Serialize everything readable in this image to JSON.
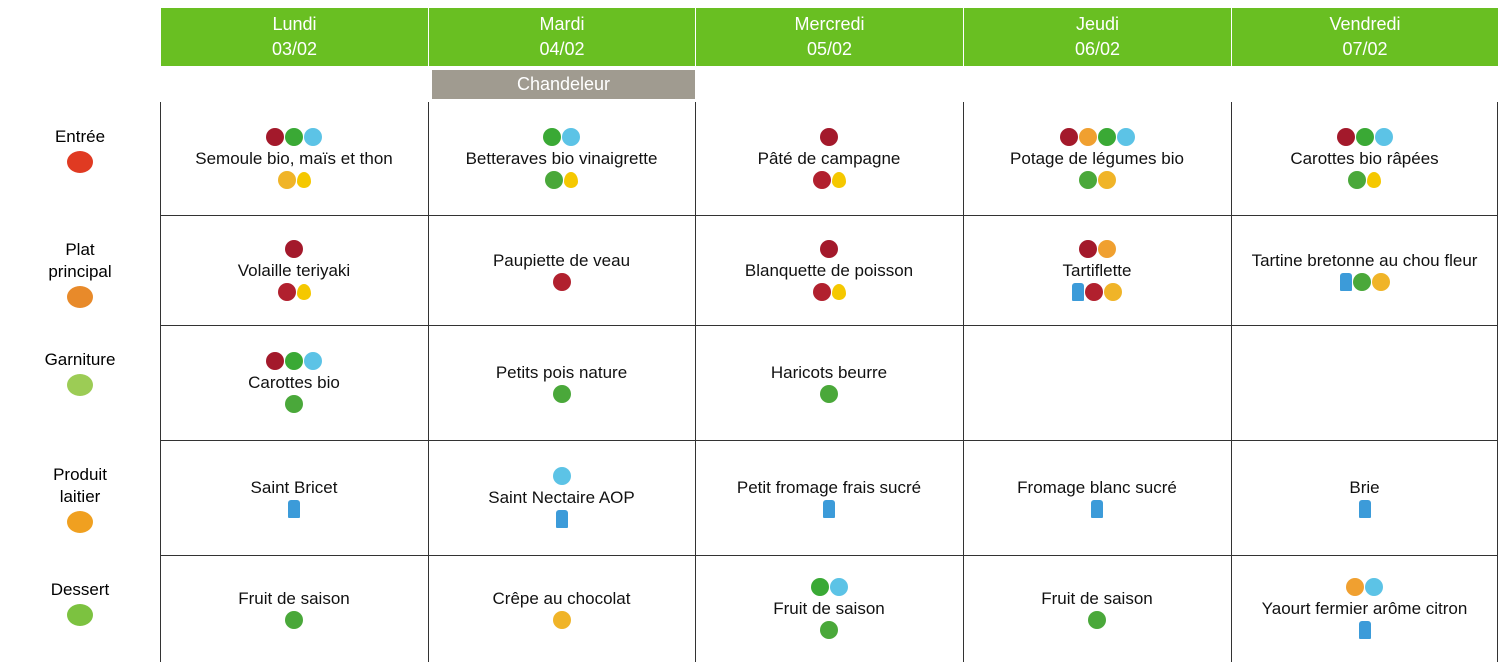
{
  "days": [
    {
      "name": "Lundi",
      "date": "03/02"
    },
    {
      "name": "Mardi",
      "date": "04/02"
    },
    {
      "name": "Mercredi",
      "date": "05/02"
    },
    {
      "name": "Jeudi",
      "date": "06/02"
    },
    {
      "name": "Vendredi",
      "date": "07/02"
    }
  ],
  "event": "Chandeleur",
  "rows": [
    {
      "label": "Entrée",
      "dishes": [
        "Semoule bio, maïs et thon",
        "Betteraves bio vinaigrette",
        "Pâté de campagne",
        "Potage de légumes bio",
        "Carottes bio râpées"
      ]
    },
    {
      "label": "Plat principal",
      "dishes": [
        "Volaille teriyaki",
        "Paupiette de veau",
        "Blanquette de poisson",
        "Tartiflette",
        "Tartine bretonne au chou fleur"
      ]
    },
    {
      "label": "Garniture",
      "dishes": [
        "Carottes bio",
        "Petits pois nature",
        "Haricots beurre",
        null,
        null
      ]
    },
    {
      "label": "Produit laitier",
      "dishes": [
        "Saint Bricet",
        "Saint Nectaire AOP",
        "Petit fromage frais sucré",
        "Fromage blanc sucré",
        "Brie"
      ]
    },
    {
      "label": "Dessert",
      "dishes": [
        "Fruit de saison",
        "Crêpe au chocolat",
        "Fruit de saison",
        "Fruit de saison",
        "Yaourt fermier arôme citron"
      ]
    }
  ]
}
